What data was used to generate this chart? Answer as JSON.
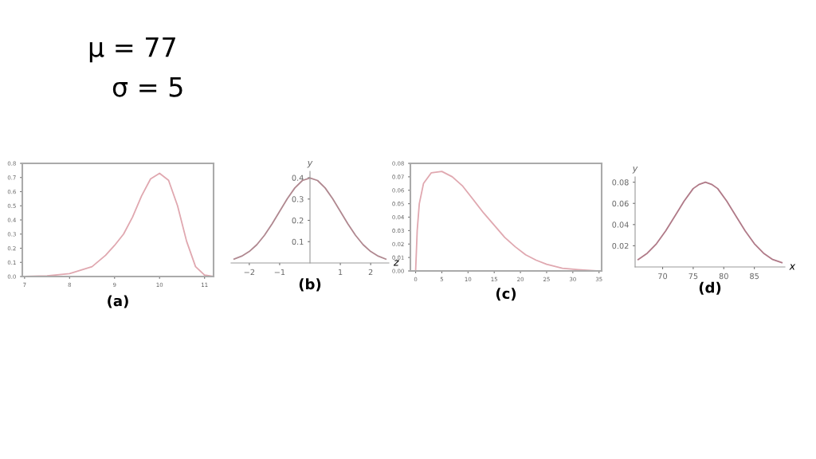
{
  "chart_data": [
    {
      "type": "line",
      "title": "(a)",
      "annotations": [
        "μ = 77",
        "σ = 5"
      ],
      "x": [
        7,
        7.5,
        8,
        8.5,
        8.8,
        9,
        9.2,
        9.4,
        9.6,
        9.8,
        10,
        10.2,
        10.4,
        10.6,
        10.8,
        11,
        11.2
      ],
      "series": [
        {
          "color": "#e0a8b0",
          "values": [
            0.0,
            0.005,
            0.02,
            0.07,
            0.15,
            0.22,
            0.3,
            0.42,
            0.57,
            0.69,
            0.73,
            0.68,
            0.5,
            0.25,
            0.07,
            0.01,
            0.0
          ]
        }
      ],
      "xlim": [
        6.95,
        11.2
      ],
      "xticks": [
        7,
        8,
        9,
        10,
        11
      ],
      "ylim": [
        0,
        0.8
      ],
      "yticks": [
        {
          "value": 0,
          "label": "0.0"
        },
        0.1,
        0.2,
        0.3,
        0.4,
        0.5,
        0.6,
        0.7,
        0.8
      ],
      "grid": false,
      "legend": false,
      "marker": "none",
      "line_style": "solid"
    },
    {
      "type": "line",
      "title": "(b)",
      "xlabel": "z",
      "ylabel": "y",
      "x": [
        -2.5,
        -2.25,
        -2,
        -1.75,
        -1.5,
        -1.25,
        -1,
        -0.75,
        -0.5,
        -0.25,
        0,
        0.25,
        0.5,
        0.75,
        1,
        1.25,
        1.5,
        1.75,
        2,
        2.25,
        2.5
      ],
      "series": [
        {
          "color": "#b08890",
          "values": [
            0.018,
            0.032,
            0.054,
            0.086,
            0.13,
            0.183,
            0.242,
            0.301,
            0.352,
            0.387,
            0.399,
            0.387,
            0.352,
            0.301,
            0.242,
            0.183,
            0.13,
            0.086,
            0.054,
            0.032,
            0.018
          ]
        }
      ],
      "xlim": [
        -2.6,
        2.6
      ],
      "xticks": [
        {
          "value": -2,
          "label": "−2"
        },
        {
          "value": -1,
          "label": "−1"
        },
        1,
        2
      ],
      "ylim": [
        0,
        0.43
      ],
      "yticks": [
        0.1,
        0.2,
        0.3,
        0.4
      ],
      "grid": false,
      "legend": false,
      "marker": "none",
      "line_style": "solid"
    },
    {
      "type": "line",
      "title": "(c)",
      "x": [
        0,
        0.3,
        0.7,
        1.5,
        3,
        5,
        7,
        9,
        11,
        13,
        15,
        17,
        19,
        21,
        23,
        25,
        28,
        31,
        35
      ],
      "series": [
        {
          "color": "#e0a8b0",
          "values": [
            0.0,
            0.03,
            0.05,
            0.065,
            0.073,
            0.074,
            0.07,
            0.063,
            0.053,
            0.043,
            0.034,
            0.025,
            0.018,
            0.012,
            0.008,
            0.005,
            0.002,
            0.001,
            0.0
          ]
        }
      ],
      "xlim": [
        -1,
        35.5
      ],
      "xticks": [
        0,
        5,
        10,
        15,
        20,
        25,
        30,
        35
      ],
      "ylim": [
        0,
        0.08
      ],
      "yticks": [
        {
          "value": 0,
          "label": "0.00"
        },
        {
          "value": 0.01,
          "label": "0.01"
        },
        {
          "value": 0.02,
          "label": "0.02"
        },
        {
          "value": 0.03,
          "label": "0.03"
        },
        {
          "value": 0.04,
          "label": "0.04"
        },
        {
          "value": 0.05,
          "label": "0.05"
        },
        {
          "value": 0.06,
          "label": "0.06"
        },
        {
          "value": 0.07,
          "label": "0.07"
        },
        {
          "value": 0.08,
          "label": "0.08"
        }
      ],
      "grid": false,
      "legend": false,
      "marker": "none",
      "line_style": "solid"
    },
    {
      "type": "line",
      "title": "(d)",
      "xlabel": "x",
      "ylabel": "y",
      "x": [
        66,
        67.5,
        69,
        70.5,
        72,
        73.5,
        75,
        76,
        77,
        78,
        79,
        80.5,
        82,
        83.5,
        85,
        86.5,
        88,
        89.5
      ],
      "series": [
        {
          "color": "#b07a88",
          "values": [
            0.007,
            0.013,
            0.022,
            0.034,
            0.048,
            0.062,
            0.074,
            0.078,
            0.08,
            0.078,
            0.074,
            0.062,
            0.048,
            0.034,
            0.022,
            0.013,
            0.007,
            0.004
          ]
        }
      ],
      "xlim": [
        65.5,
        90
      ],
      "xticks": [
        70,
        75,
        80,
        85
      ],
      "ylim": [
        0,
        0.085
      ],
      "yticks": [
        0.02,
        0.04,
        0.06,
        0.08
      ],
      "grid": false,
      "legend": false,
      "marker": "none",
      "line_style": "solid"
    }
  ]
}
